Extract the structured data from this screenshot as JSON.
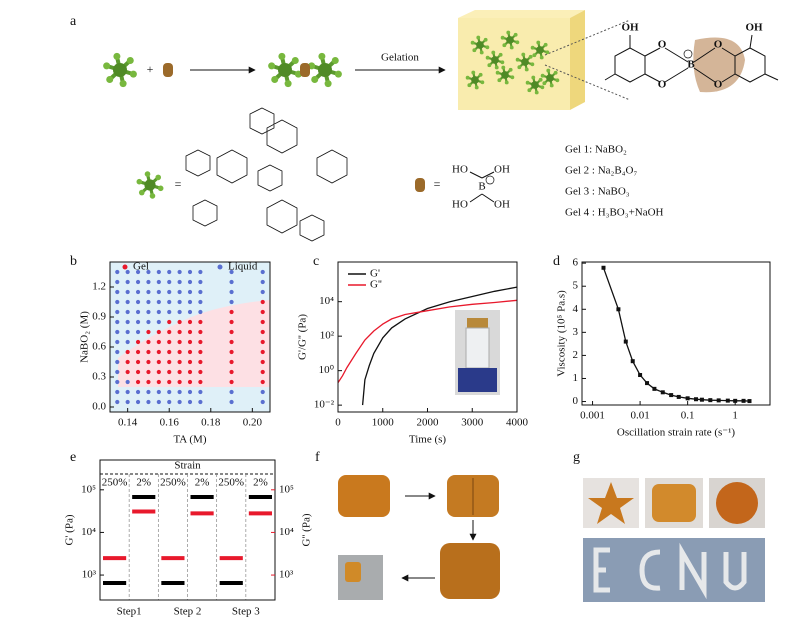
{
  "panel_labels": [
    "a",
    "b",
    "c",
    "d",
    "e",
    "f",
    "g"
  ],
  "diagram": {
    "plus": "+",
    "gelation": "Gelation",
    "equals": [
      "=",
      "="
    ],
    "borate": [
      "HO",
      "OH",
      "B",
      "HO",
      "OH"
    ],
    "ester": [
      "OH",
      "O",
      "O",
      "B",
      "O",
      "O",
      "OH"
    ],
    "gels": [
      "Gel 1:  NaBO₂",
      "Gel 2 : Na₂B₄O₇",
      "Gel 3 : NaBO₃",
      "Gel 4 : H₃BO₃+NaOH"
    ]
  },
  "chart_data": [
    {
      "type": "scatter",
      "xlabel": "TA (M)",
      "ylabel": "NaBO₂ (M)",
      "legend": "top",
      "xlim": [
        0.1315,
        0.2085
      ],
      "ylim": [
        -0.05,
        1.45
      ],
      "xticks": [
        0.14,
        0.16,
        0.18,
        {
          "value": 0.2,
          "label": "0.20"
        }
      ],
      "yticks": [
        {
          "value": 0,
          "label": "0.0"
        },
        0.3,
        0.6,
        0.9,
        1.2
      ],
      "series": [
        {
          "name": "Gel",
          "color": "#e8192c",
          "x": [
            0.14,
            0.14,
            0.14,
            0.145,
            0.145,
            0.145,
            0.145,
            0.145,
            0.15,
            0.15,
            0.15,
            0.15,
            0.15,
            0.15,
            0.155,
            0.155,
            0.155,
            0.155,
            0.155,
            0.155,
            0.16,
            0.16,
            0.16,
            0.16,
            0.16,
            0.16,
            0.16,
            0.165,
            0.165,
            0.165,
            0.165,
            0.165,
            0.165,
            0.165,
            0.17,
            0.17,
            0.17,
            0.17,
            0.17,
            0.17,
            0.17,
            0.175,
            0.175,
            0.175,
            0.175,
            0.175,
            0.175,
            0.175,
            0.19,
            0.19,
            0.19,
            0.19,
            0.19,
            0.19,
            0.19,
            0.19,
            0.205,
            0.205,
            0.205,
            0.205,
            0.205,
            0.205,
            0.205,
            0.205,
            0.205
          ],
          "y": [
            0.35,
            0.45,
            0.55,
            0.25,
            0.35,
            0.45,
            0.55,
            0.65,
            0.25,
            0.35,
            0.45,
            0.55,
            0.65,
            0.75,
            0.25,
            0.35,
            0.45,
            0.55,
            0.65,
            0.75,
            0.25,
            0.35,
            0.45,
            0.55,
            0.65,
            0.75,
            0.85,
            0.25,
            0.35,
            0.45,
            0.55,
            0.65,
            0.75,
            0.85,
            0.25,
            0.35,
            0.45,
            0.55,
            0.65,
            0.75,
            0.85,
            0.25,
            0.35,
            0.45,
            0.55,
            0.65,
            0.75,
            0.85,
            0.25,
            0.35,
            0.45,
            0.55,
            0.65,
            0.75,
            0.85,
            0.95,
            0.25,
            0.35,
            0.45,
            0.55,
            0.65,
            0.75,
            0.85,
            0.95,
            1.05
          ]
        },
        {
          "name": "Liquid",
          "color": "#5a6fd0",
          "x": [
            0.135,
            0.135,
            0.135,
            0.135,
            0.135,
            0.135,
            0.135,
            0.135,
            0.135,
            0.135,
            0.135,
            0.135,
            0.135,
            0.135,
            0.14,
            0.14,
            0.14,
            0.14,
            0.14,
            0.14,
            0.14,
            0.14,
            0.14,
            0.14,
            0.14,
            0.145,
            0.145,
            0.145,
            0.145,
            0.145,
            0.145,
            0.145,
            0.145,
            0.145,
            0.15,
            0.15,
            0.15,
            0.15,
            0.15,
            0.15,
            0.15,
            0.15,
            0.155,
            0.155,
            0.155,
            0.155,
            0.155,
            0.155,
            0.155,
            0.155,
            0.16,
            0.16,
            0.16,
            0.16,
            0.16,
            0.16,
            0.16,
            0.165,
            0.165,
            0.165,
            0.165,
            0.165,
            0.165,
            0.165,
            0.17,
            0.17,
            0.17,
            0.17,
            0.17,
            0.17,
            0.17,
            0.175,
            0.175,
            0.175,
            0.175,
            0.175,
            0.175,
            0.175,
            0.19,
            0.19,
            0.19,
            0.19,
            0.19,
            0.19,
            0.205,
            0.205,
            0.205,
            0.205,
            0.205
          ],
          "y": [
            0.05,
            0.15,
            0.25,
            0.35,
            0.45,
            0.55,
            0.65,
            0.75,
            0.85,
            0.95,
            1.05,
            1.15,
            1.25,
            1.35,
            0.05,
            0.15,
            0.25,
            0.65,
            0.75,
            0.85,
            0.95,
            1.05,
            1.15,
            1.25,
            1.35,
            0.05,
            0.15,
            0.75,
            0.85,
            0.95,
            1.05,
            1.15,
            1.25,
            1.35,
            0.05,
            0.15,
            0.85,
            0.95,
            1.05,
            1.15,
            1.25,
            1.35,
            0.05,
            0.15,
            0.85,
            0.95,
            1.05,
            1.15,
            1.25,
            1.35,
            0.05,
            0.15,
            0.95,
            1.05,
            1.15,
            1.25,
            1.35,
            0.05,
            0.15,
            0.95,
            1.05,
            1.15,
            1.25,
            1.35,
            0.05,
            0.15,
            0.95,
            1.05,
            1.15,
            1.25,
            1.35,
            0.05,
            0.15,
            0.95,
            1.05,
            1.15,
            1.25,
            1.35,
            0.05,
            0.15,
            1.05,
            1.15,
            1.25,
            1.35,
            0.05,
            0.15,
            1.15,
            1.25,
            1.35
          ]
        }
      ]
    },
    {
      "type": "line",
      "xlabel": "Time (s)",
      "ylabel": "G'/G'' (Pa)",
      "legend": "top-left",
      "ylog": true,
      "xlim": [
        0,
        4000
      ],
      "ylim": [
        0.004,
        2000000
      ],
      "xticks": [
        0,
        1000,
        2000,
        3000,
        4000
      ],
      "yticks": [
        {
          "value": 0.01,
          "label": "10⁻²"
        },
        {
          "value": 1,
          "label": "10⁰"
        },
        {
          "value": 100,
          "label": "10²"
        },
        {
          "value": 10000,
          "label": "10⁴"
        }
      ],
      "series": [
        {
          "name": "G'",
          "color": "#111111",
          "x": [
            550,
            600,
            700,
            800,
            1000,
            1200,
            1500,
            2000,
            2500,
            3000,
            3500,
            4000
          ],
          "values": [
            0.01,
            0.3,
            2,
            10,
            80,
            300,
            1000,
            4000,
            10000,
            20000,
            40000,
            70000
          ]
        },
        {
          "name": "G''",
          "color": "#e8192c",
          "x": [
            0,
            100,
            200,
            400,
            600,
            800,
            1000,
            1200,
            1500,
            2000,
            2500,
            3000,
            3500,
            4000
          ],
          "values": [
            0.2,
            0.5,
            1.5,
            10,
            60,
            200,
            500,
            1000,
            1800,
            3000,
            5000,
            7000,
            9000,
            12000
          ]
        }
      ]
    },
    {
      "type": "line",
      "xlabel": "Oscillation strain rate (s⁻¹)",
      "ylabel": "Viscosity (10⁵ Pa.s)",
      "xlog": true,
      "markers": true,
      "xlim": [
        0.0006,
        5.4
      ],
      "ylim": [
        -0.15,
        6.05
      ],
      "xticks": [
        0.001,
        0.01,
        0.1,
        1
      ],
      "yticks": [
        0,
        1,
        2,
        3,
        4,
        5,
        6
      ],
      "series": [
        {
          "color": "#111111",
          "x": [
            0.0017,
            0.0035,
            0.005,
            0.007,
            0.01,
            0.014,
            0.02,
            0.03,
            0.045,
            0.065,
            0.1,
            0.15,
            0.2,
            0.3,
            0.45,
            0.7,
            1,
            1.5,
            2
          ],
          "values": [
            5.8,
            4.0,
            2.6,
            1.75,
            1.15,
            0.8,
            0.55,
            0.4,
            0.28,
            0.2,
            0.14,
            0.1,
            0.08,
            0.06,
            0.05,
            0.04,
            0.03,
            0.03,
            0.02
          ]
        }
      ]
    },
    {
      "type": "step",
      "annotation": "Strain",
      "ylabel": "G' (Pa)",
      "y2label": "G'' (Pa)",
      "ylog": true,
      "categories": [
        "250%",
        "2%",
        "250%",
        "2%",
        "250%",
        "2%"
      ],
      "groups": [
        "Step1",
        "Step 2",
        "Step 3"
      ],
      "ylim": [
        260,
        500000
      ],
      "yticks": [
        {
          "value": 1000,
          "label": "10³"
        },
        {
          "value": 10000,
          "label": "10⁴"
        },
        {
          "value": 100000,
          "label": "10⁵"
        }
      ],
      "y2lim": [
        260,
        500000
      ],
      "y2ticks": [
        {
          "value": 1000,
          "label": "10³"
        },
        {
          "value": 10000,
          "label": "10⁴"
        },
        {
          "value": 100000,
          "label": "10⁵"
        }
      ],
      "series": [
        {
          "color": "#000000",
          "values": [
            650,
            68000,
            650,
            68000,
            650,
            68000
          ]
        },
        {
          "color": "#e8192c",
          "axis": "y2",
          "values": [
            2500,
            31000,
            2500,
            28000,
            2500,
            28000
          ]
        }
      ]
    }
  ]
}
